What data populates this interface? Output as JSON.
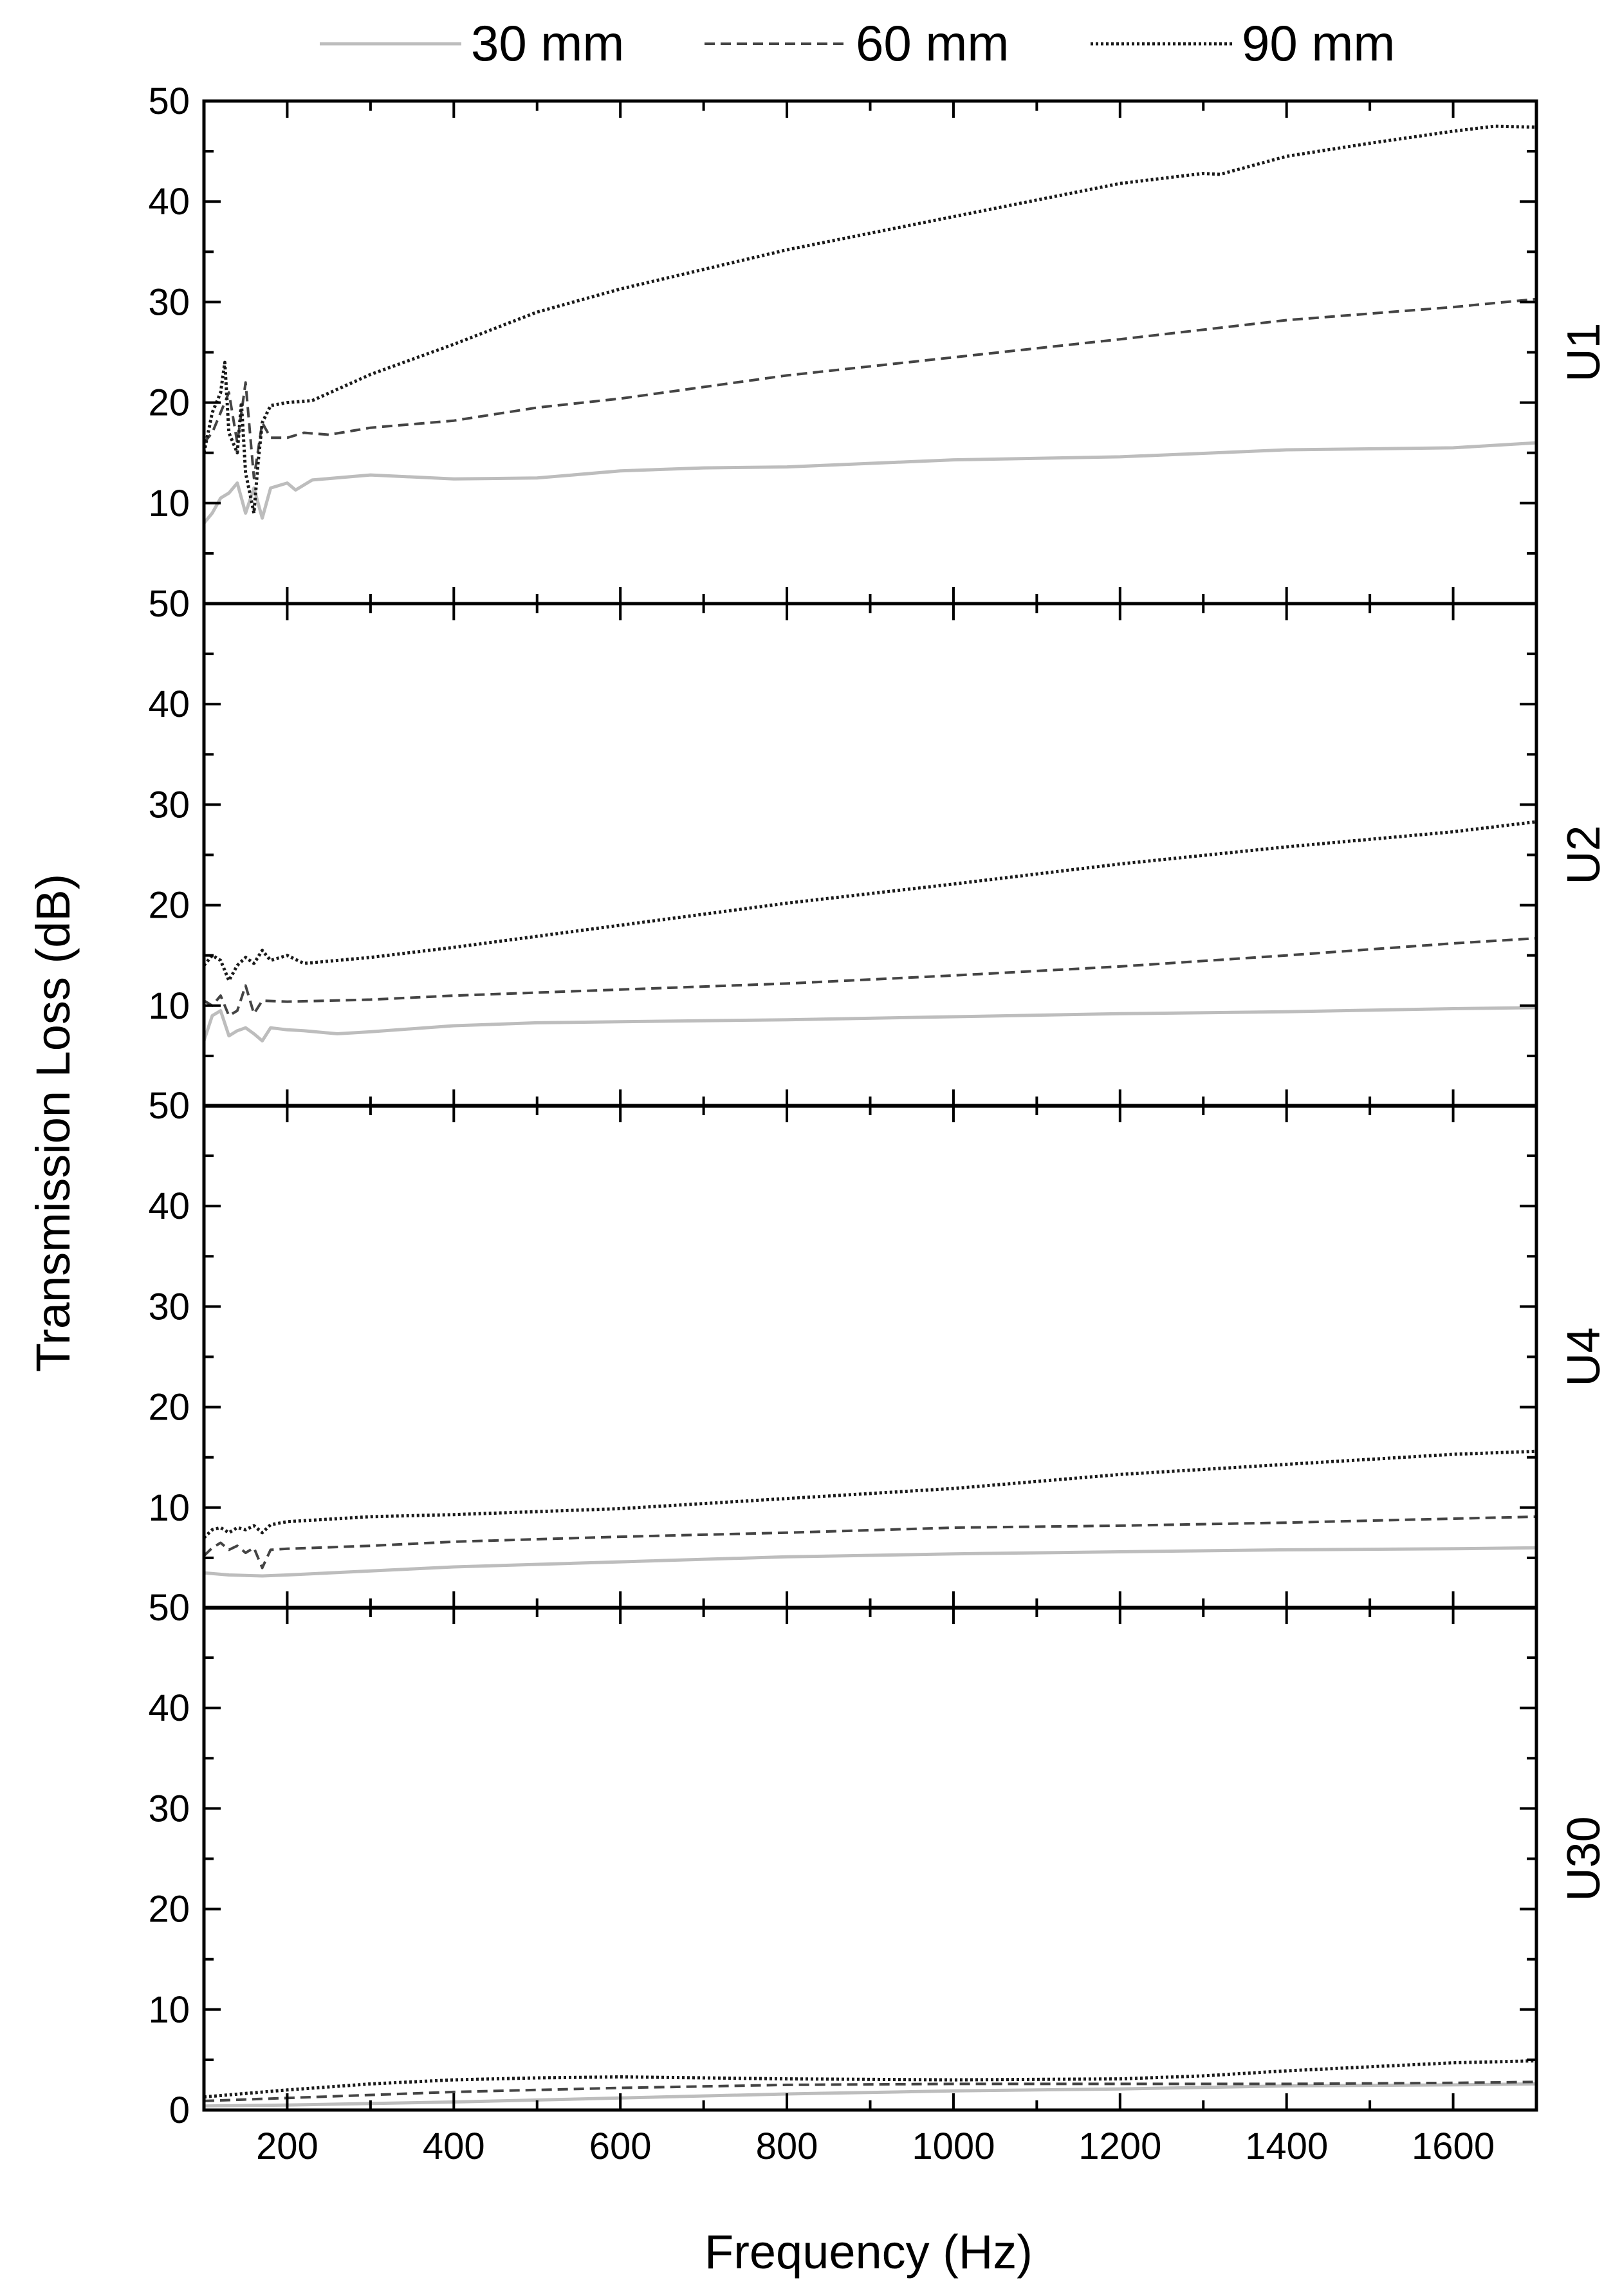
{
  "chart_data": {
    "type": "line",
    "xlabel": "Frequency (Hz)",
    "ylabel": "Transmission Loss (dB)",
    "xlim": [
      100,
      1700
    ],
    "ylim": [
      0,
      50
    ],
    "x_ticks": [
      200,
      400,
      600,
      800,
      1000,
      1200,
      1400,
      1600
    ],
    "y_ticks": [
      0,
      10,
      20,
      30,
      40,
      50
    ],
    "legend": [
      {
        "name": "30 mm",
        "color": "#bdbdbd",
        "style": "solid"
      },
      {
        "name": "60 mm",
        "color": "#444444",
        "style": "dashed"
      },
      {
        "name": "90 mm",
        "color": "#1a1a1a",
        "style": "dotted"
      }
    ],
    "legend_position": "top",
    "grid": false,
    "panels": [
      {
        "label": "U1",
        "y_tick_labels": [
          "10",
          "20",
          "30",
          "40",
          "50"
        ],
        "series": [
          {
            "name": "30 mm",
            "points": [
              [
                100,
                8
              ],
              [
                110,
                9
              ],
              [
                120,
                10.5
              ],
              [
                130,
                11
              ],
              [
                140,
                12
              ],
              [
                150,
                9
              ],
              [
                160,
                11.5
              ],
              [
                170,
                8.5
              ],
              [
                180,
                11.5
              ],
              [
                200,
                12
              ],
              [
                210,
                11.3
              ],
              [
                230,
                12.3
              ],
              [
                300,
                12.8
              ],
              [
                400,
                12.4
              ],
              [
                500,
                12.5
              ],
              [
                600,
                13.2
              ],
              [
                700,
                13.5
              ],
              [
                800,
                13.6
              ],
              [
                1000,
                14.3
              ],
              [
                1200,
                14.6
              ],
              [
                1400,
                15.3
              ],
              [
                1600,
                15.5
              ],
              [
                1700,
                16
              ]
            ]
          },
          {
            "name": "60 mm",
            "points": [
              [
                100,
                16
              ],
              [
                110,
                17
              ],
              [
                120,
                19
              ],
              [
                130,
                21
              ],
              [
                140,
                16
              ],
              [
                150,
                22
              ],
              [
                160,
                12.5
              ],
              [
                170,
                18
              ],
              [
                180,
                16.5
              ],
              [
                200,
                16.5
              ],
              [
                220,
                17
              ],
              [
                250,
                16.8
              ],
              [
                300,
                17.5
              ],
              [
                400,
                18.2
              ],
              [
                500,
                19.5
              ],
              [
                600,
                20.4
              ],
              [
                800,
                22.7
              ],
              [
                1000,
                24.5
              ],
              [
                1200,
                26.3
              ],
              [
                1400,
                28.2
              ],
              [
                1600,
                29.5
              ],
              [
                1700,
                30.3
              ]
            ]
          },
          {
            "name": "90 mm",
            "points": [
              [
                100,
                15
              ],
              [
                110,
                19
              ],
              [
                120,
                21
              ],
              [
                125,
                24
              ],
              [
                130,
                17
              ],
              [
                140,
                15
              ],
              [
                145,
                20
              ],
              [
                150,
                13
              ],
              [
                160,
                9
              ],
              [
                165,
                14
              ],
              [
                170,
                18
              ],
              [
                180,
                19.7
              ],
              [
                200,
                20
              ],
              [
                230,
                20.2
              ],
              [
                300,
                22.8
              ],
              [
                400,
                25.8
              ],
              [
                500,
                29
              ],
              [
                600,
                31.3
              ],
              [
                800,
                35.2
              ],
              [
                1000,
                38.5
              ],
              [
                1200,
                41.8
              ],
              [
                1300,
                42.8
              ],
              [
                1320,
                42.7
              ],
              [
                1400,
                44.5
              ],
              [
                1500,
                45.8
              ],
              [
                1600,
                47
              ],
              [
                1650,
                47.5
              ],
              [
                1700,
                47.4
              ]
            ]
          }
        ]
      },
      {
        "label": "U2",
        "y_tick_labels": [
          "10",
          "20",
          "30",
          "40",
          "50"
        ],
        "series": [
          {
            "name": "30 mm",
            "points": [
              [
                100,
                6.5
              ],
              [
                110,
                9
              ],
              [
                120,
                9.5
              ],
              [
                130,
                7
              ],
              [
                140,
                7.5
              ],
              [
                150,
                7.8
              ],
              [
                160,
                7.2
              ],
              [
                170,
                6.5
              ],
              [
                180,
                7.8
              ],
              [
                200,
                7.6
              ],
              [
                220,
                7.5
              ],
              [
                260,
                7.2
              ],
              [
                300,
                7.4
              ],
              [
                400,
                8
              ],
              [
                500,
                8.3
              ],
              [
                600,
                8.4
              ],
              [
                800,
                8.6
              ],
              [
                1000,
                8.9
              ],
              [
                1200,
                9.2
              ],
              [
                1400,
                9.4
              ],
              [
                1600,
                9.7
              ],
              [
                1700,
                9.8
              ]
            ]
          },
          {
            "name": "60 mm",
            "points": [
              [
                100,
                10.5
              ],
              [
                110,
                10
              ],
              [
                120,
                11
              ],
              [
                130,
                9
              ],
              [
                140,
                9.5
              ],
              [
                150,
                12
              ],
              [
                160,
                9.2
              ],
              [
                170,
                10.5
              ],
              [
                200,
                10.4
              ],
              [
                300,
                10.6
              ],
              [
                400,
                11
              ],
              [
                500,
                11.3
              ],
              [
                600,
                11.6
              ],
              [
                800,
                12.2
              ],
              [
                1000,
                13
              ],
              [
                1200,
                13.9
              ],
              [
                1400,
                15
              ],
              [
                1600,
                16.2
              ],
              [
                1700,
                16.7
              ]
            ]
          },
          {
            "name": "90 mm",
            "points": [
              [
                100,
                14
              ],
              [
                110,
                15
              ],
              [
                120,
                14.5
              ],
              [
                130,
                12.5
              ],
              [
                140,
                14
              ],
              [
                150,
                14.8
              ],
              [
                160,
                14.2
              ],
              [
                170,
                15.5
              ],
              [
                180,
                14.5
              ],
              [
                200,
                15
              ],
              [
                220,
                14.2
              ],
              [
                300,
                14.8
              ],
              [
                400,
                15.8
              ],
              [
                500,
                16.9
              ],
              [
                600,
                18
              ],
              [
                800,
                20.2
              ],
              [
                1000,
                22.1
              ],
              [
                1200,
                24.1
              ],
              [
                1400,
                25.8
              ],
              [
                1600,
                27.3
              ],
              [
                1700,
                28.3
              ]
            ]
          }
        ]
      },
      {
        "label": "U4",
        "y_tick_labels": [
          "10",
          "20",
          "30",
          "40",
          "50"
        ],
        "series": [
          {
            "name": "30 mm",
            "points": [
              [
                100,
                3.5
              ],
              [
                130,
                3.3
              ],
              [
                170,
                3.2
              ],
              [
                200,
                3.3
              ],
              [
                300,
                3.7
              ],
              [
                400,
                4.1
              ],
              [
                600,
                4.6
              ],
              [
                800,
                5.1
              ],
              [
                1000,
                5.4
              ],
              [
                1200,
                5.6
              ],
              [
                1400,
                5.8
              ],
              [
                1600,
                5.9
              ],
              [
                1700,
                6
              ]
            ]
          },
          {
            "name": "60 mm",
            "points": [
              [
                100,
                5.2
              ],
              [
                110,
                6
              ],
              [
                120,
                6.5
              ],
              [
                130,
                5.8
              ],
              [
                140,
                6.2
              ],
              [
                150,
                5.5
              ],
              [
                160,
                6
              ],
              [
                170,
                4
              ],
              [
                180,
                5.8
              ],
              [
                200,
                5.9
              ],
              [
                300,
                6.2
              ],
              [
                400,
                6.6
              ],
              [
                600,
                7.1
              ],
              [
                800,
                7.5
              ],
              [
                1000,
                8
              ],
              [
                1200,
                8.2
              ],
              [
                1400,
                8.5
              ],
              [
                1600,
                8.9
              ],
              [
                1700,
                9.1
              ]
            ]
          },
          {
            "name": "90 mm",
            "points": [
              [
                100,
                7
              ],
              [
                110,
                7.8
              ],
              [
                120,
                8
              ],
              [
                130,
                7.5
              ],
              [
                140,
                8
              ],
              [
                150,
                7.8
              ],
              [
                160,
                8.2
              ],
              [
                170,
                7.5
              ],
              [
                180,
                8.3
              ],
              [
                200,
                8.6
              ],
              [
                300,
                9.1
              ],
              [
                400,
                9.3
              ],
              [
                600,
                9.9
              ],
              [
                800,
                10.9
              ],
              [
                1000,
                11.9
              ],
              [
                1200,
                13.3
              ],
              [
                1400,
                14.3
              ],
              [
                1600,
                15.3
              ],
              [
                1700,
                15.6
              ]
            ]
          }
        ]
      },
      {
        "label": "U30",
        "y_tick_labels": [
          "0",
          "10",
          "20",
          "30",
          "40",
          "50"
        ],
        "series": [
          {
            "name": "30 mm",
            "points": [
              [
                100,
                0.4
              ],
              [
                200,
                0.5
              ],
              [
                400,
                0.8
              ],
              [
                600,
                1.2
              ],
              [
                800,
                1.6
              ],
              [
                1000,
                1.9
              ],
              [
                1200,
                2.1
              ],
              [
                1400,
                2.4
              ],
              [
                1600,
                2.5
              ],
              [
                1700,
                2.6
              ]
            ]
          },
          {
            "name": "60 mm",
            "points": [
              [
                100,
                0.9
              ],
              [
                200,
                1.2
              ],
              [
                400,
                1.8
              ],
              [
                600,
                2.2
              ],
              [
                800,
                2.5
              ],
              [
                1000,
                2.6
              ],
              [
                1200,
                2.6
              ],
              [
                1400,
                2.6
              ],
              [
                1600,
                2.7
              ],
              [
                1700,
                2.8
              ]
            ]
          },
          {
            "name": "90 mm",
            "points": [
              [
                100,
                1.3
              ],
              [
                200,
                2
              ],
              [
                300,
                2.6
              ],
              [
                400,
                3
              ],
              [
                500,
                3.2
              ],
              [
                600,
                3.3
              ],
              [
                700,
                3.2
              ],
              [
                800,
                3.1
              ],
              [
                1000,
                3
              ],
              [
                1200,
                3.1
              ],
              [
                1300,
                3.4
              ],
              [
                1400,
                3.9
              ],
              [
                1500,
                4.3
              ],
              [
                1600,
                4.7
              ],
              [
                1700,
                4.9
              ]
            ]
          }
        ]
      }
    ]
  }
}
